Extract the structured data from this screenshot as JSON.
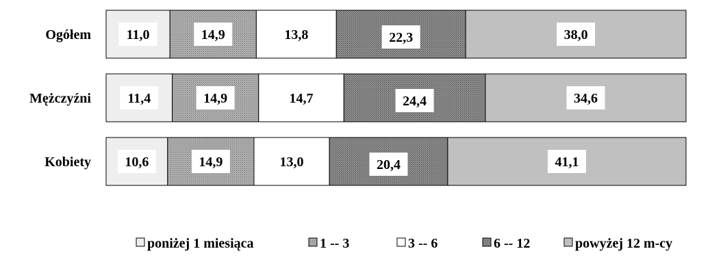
{
  "chart_data": {
    "type": "bar",
    "orientation": "horizontal",
    "stacked": "percent",
    "categories": [
      "Ogółem",
      "Mężczyźni",
      "Kobiety"
    ],
    "series": [
      {
        "name": "poniżej 1 miesiąca",
        "values": [
          11.0,
          11.4,
          10.6
        ],
        "labels": [
          "11,0",
          "11,4",
          "10,6"
        ],
        "color": "#eeeeee",
        "pattern": "solid"
      },
      {
        "name": "1 -- 3",
        "values": [
          14.9,
          14.9,
          14.9
        ],
        "labels": [
          "14,9",
          "14,9",
          "14,9"
        ],
        "color": "#a6a6a6",
        "pattern": "dots"
      },
      {
        "name": "3 -- 6",
        "values": [
          13.8,
          14.7,
          13.0
        ],
        "labels": [
          "13,8",
          "14,7",
          "13,0"
        ],
        "color": "#ffffff",
        "pattern": "solid"
      },
      {
        "name": "6 -- 12",
        "values": [
          22.3,
          24.4,
          20.4
        ],
        "labels": [
          "22,3",
          "24,4",
          "20,4"
        ],
        "color": "#8c8c8c",
        "pattern": "dots"
      },
      {
        "name": "powyżej 12 m-cy",
        "values": [
          38.0,
          34.6,
          41.1
        ],
        "labels": [
          "38,0",
          "34,6",
          "41,1"
        ],
        "color": "#c0c0c0",
        "pattern": "solid"
      }
    ],
    "xlim": [
      0,
      100
    ],
    "grid": false,
    "legend": "bottom",
    "title": "",
    "xlabel": "",
    "ylabel": ""
  }
}
